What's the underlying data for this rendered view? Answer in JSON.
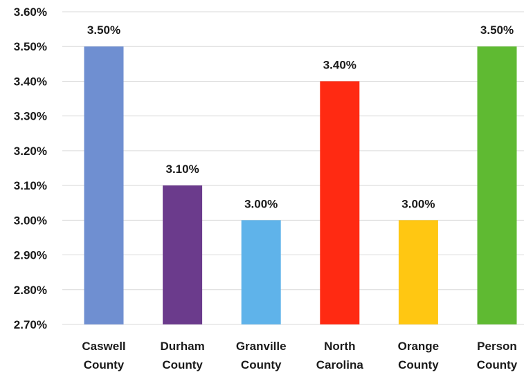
{
  "chart_data": {
    "type": "bar",
    "title": "",
    "xlabel": "",
    "ylabel": "",
    "categories": [
      [
        "Caswell",
        "County"
      ],
      [
        "Durham",
        "County"
      ],
      [
        "Granville",
        "County"
      ],
      [
        "North",
        "Carolina"
      ],
      [
        "Orange",
        "County"
      ],
      [
        "Person",
        "County"
      ]
    ],
    "values": [
      3.5,
      3.1,
      3.0,
      3.4,
      3.0,
      3.5
    ],
    "data_labels": [
      "3.50%",
      "3.10%",
      "3.00%",
      "3.40%",
      "3.00%",
      "3.50%"
    ],
    "bar_colors": [
      "#6f8fd1",
      "#6b3b8c",
      "#5fb3ea",
      "#ff2a12",
      "#ffc712",
      "#5fba32"
    ],
    "ylim": [
      2.7,
      3.6
    ],
    "yticks": [
      3.6,
      3.5,
      3.4,
      3.3,
      3.2,
      3.1,
      3.0,
      2.9,
      2.8,
      2.7
    ],
    "ytick_labels": [
      "3.60%",
      "3.50%",
      "3.40%",
      "3.30%",
      "3.20%",
      "3.10%",
      "3.00%",
      "2.90%",
      "2.80%",
      "2.70%"
    ],
    "grid": true,
    "legend": "none"
  }
}
